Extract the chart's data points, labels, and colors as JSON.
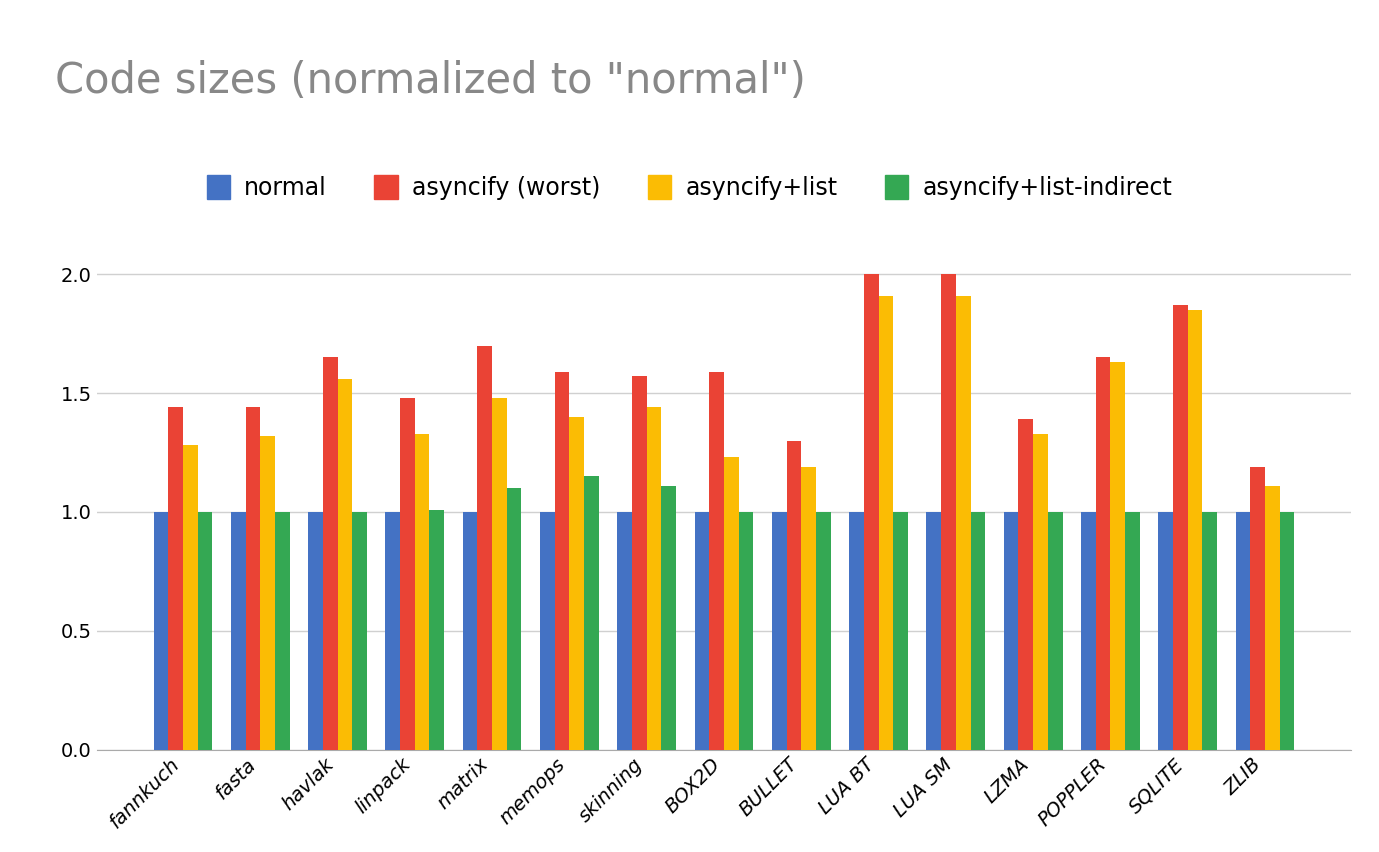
{
  "title": "Code sizes (normalized to \"normal\")",
  "categories": [
    "fannkuch",
    "fasta",
    "havlak",
    "linpack",
    "matrix",
    "memops",
    "skinning",
    "BOX2D",
    "BULLET",
    "LUA BT",
    "LUA SM",
    "LZMA",
    "POPPLER",
    "SQLITE",
    "ZLIB"
  ],
  "series": {
    "normal": [
      1.0,
      1.0,
      1.0,
      1.0,
      1.0,
      1.0,
      1.0,
      1.0,
      1.0,
      1.0,
      1.0,
      1.0,
      1.0,
      1.0,
      1.0
    ],
    "asyncify (worst)": [
      1.44,
      1.44,
      1.65,
      1.48,
      1.7,
      1.59,
      1.57,
      1.59,
      1.3,
      2.0,
      2.0,
      1.39,
      1.65,
      1.87,
      1.19
    ],
    "asyncify+list": [
      1.28,
      1.32,
      1.56,
      1.33,
      1.48,
      1.4,
      1.44,
      1.23,
      1.19,
      1.91,
      1.91,
      1.33,
      1.63,
      1.85,
      1.11
    ],
    "asyncify+list-indirect": [
      1.0,
      1.0,
      1.0,
      1.01,
      1.1,
      1.15,
      1.11,
      1.0,
      1.0,
      1.0,
      1.0,
      1.0,
      1.0,
      1.0,
      1.0
    ]
  },
  "colors": {
    "normal": "#4472C4",
    "asyncify (worst)": "#EA4335",
    "asyncify+list": "#FBBC04",
    "asyncify+list-indirect": "#34A853"
  },
  "ylim": [
    0,
    2.15
  ],
  "yticks": [
    0,
    0.5,
    1.0,
    1.5,
    2.0
  ],
  "legend_labels": [
    "normal",
    "asyncify (worst)",
    "asyncify+list",
    "asyncify+list-indirect"
  ],
  "background_color": "#ffffff",
  "grid_color": "#d0d0d0",
  "title_fontsize": 30,
  "tick_fontsize": 14,
  "legend_fontsize": 17
}
